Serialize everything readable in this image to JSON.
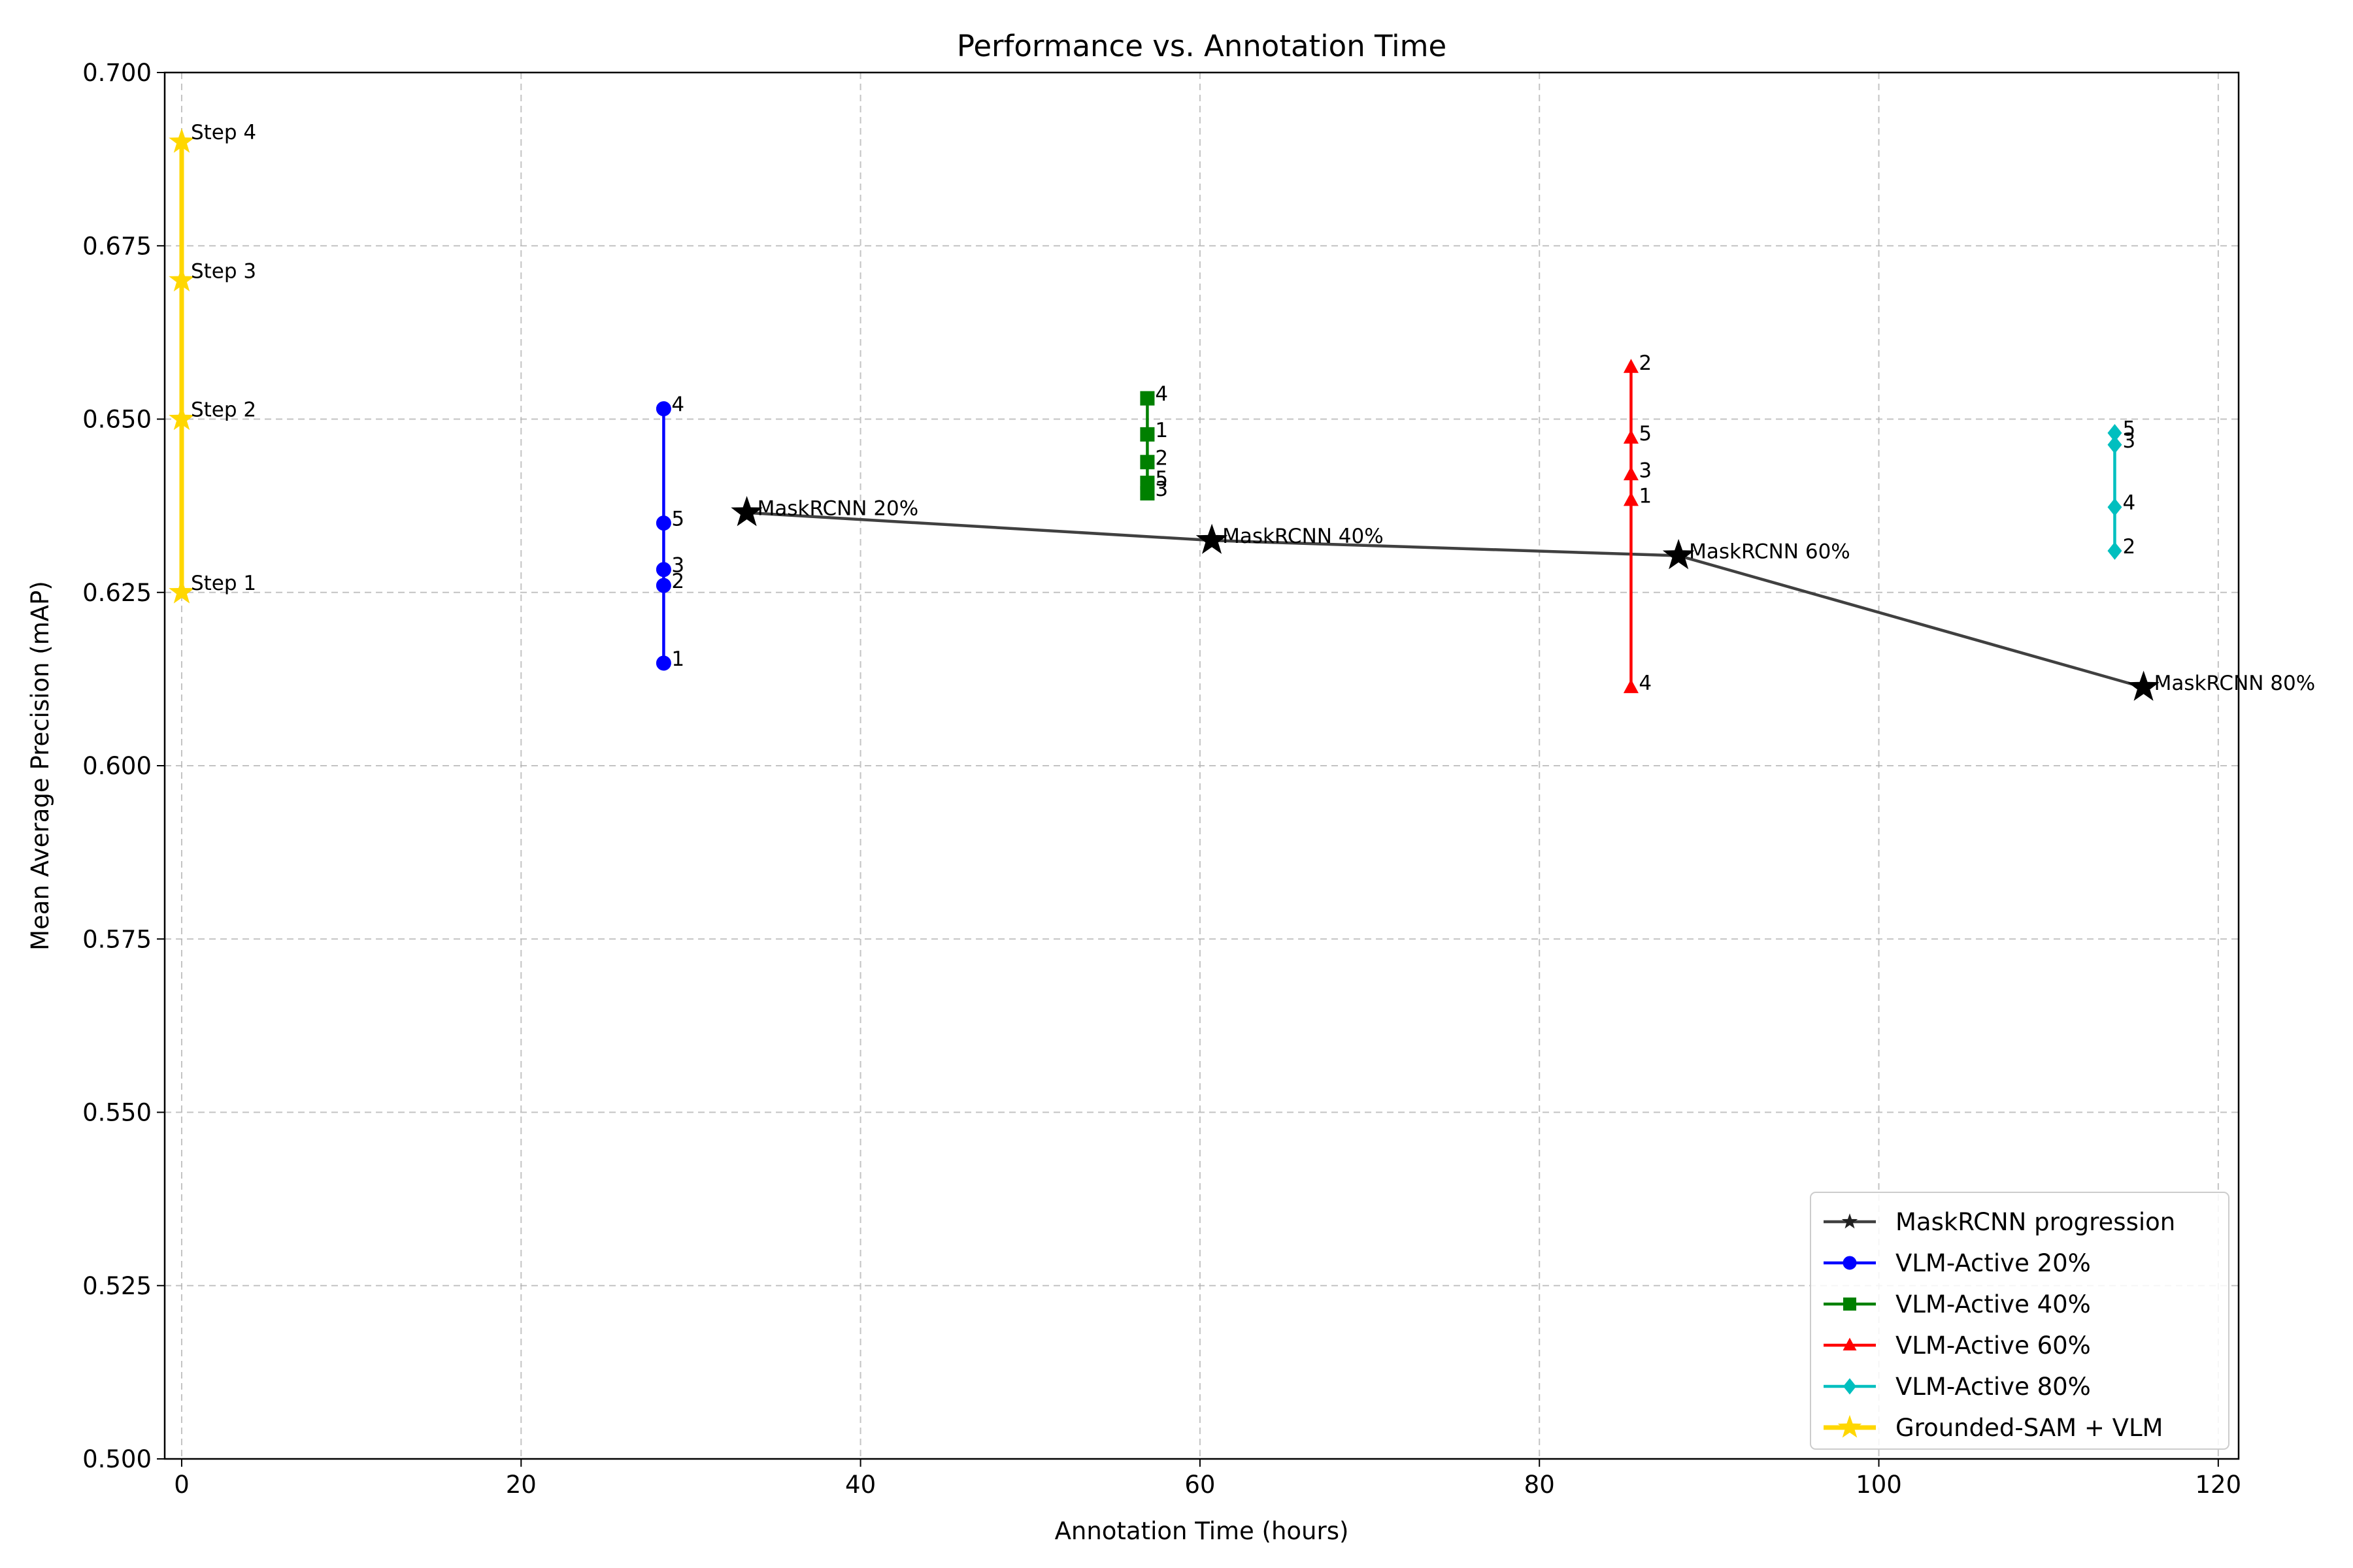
{
  "chart_data": {
    "type": "line",
    "title": "Performance vs. Annotation Time",
    "xlabel": "Annotation Time (hours)",
    "ylabel": "Mean Average Precision (mAP)",
    "xlim": [
      -1,
      121.2
    ],
    "ylim": [
      0.5,
      0.7
    ],
    "xticks": [
      0,
      20,
      40,
      60,
      80,
      100,
      120
    ],
    "yticks": [
      0.5,
      0.525,
      0.55,
      0.575,
      0.6,
      0.625,
      0.65,
      0.675,
      0.7
    ],
    "xtick_labels": [
      "0",
      "20",
      "40",
      "60",
      "80",
      "100",
      "120"
    ],
    "ytick_labels": [
      "0.500",
      "0.525",
      "0.550",
      "0.575",
      "0.600",
      "0.625",
      "0.650",
      "0.675",
      "0.700"
    ],
    "grid": true,
    "legend_position": "lower-right",
    "series": [
      {
        "name": "MaskRCNN progression",
        "color": "#404040",
        "marker": "star",
        "connect": "line",
        "points": [
          {
            "x": 33.3,
            "y": 0.6365,
            "label": "MaskRCNN 20%"
          },
          {
            "x": 60.7,
            "y": 0.6325,
            "label": "MaskRCNN 40%"
          },
          {
            "x": 88.2,
            "y": 0.6303,
            "label": "MaskRCNN 60%"
          },
          {
            "x": 115.6,
            "y": 0.6113,
            "label": "MaskRCNN 80%"
          }
        ]
      },
      {
        "name": "VLM-Active 20%",
        "color": "#0000ff",
        "marker": "circle",
        "connect": "vertical",
        "points": [
          {
            "x": 28.4,
            "y": 0.6148,
            "label": "1"
          },
          {
            "x": 28.4,
            "y": 0.626,
            "label": "2"
          },
          {
            "x": 28.4,
            "y": 0.6283,
            "label": "3"
          },
          {
            "x": 28.4,
            "y": 0.6515,
            "label": "4"
          },
          {
            "x": 28.4,
            "y": 0.635,
            "label": "5"
          }
        ]
      },
      {
        "name": "VLM-Active 40%",
        "color": "#008000",
        "marker": "square",
        "connect": "vertical",
        "points": [
          {
            "x": 56.9,
            "y": 0.6478,
            "label": "1"
          },
          {
            "x": 56.9,
            "y": 0.6438,
            "label": "2"
          },
          {
            "x": 56.9,
            "y": 0.6393,
            "label": "3"
          },
          {
            "x": 56.9,
            "y": 0.653,
            "label": "4"
          },
          {
            "x": 56.9,
            "y": 0.6408,
            "label": "5"
          }
        ]
      },
      {
        "name": "VLM-Active 60%",
        "color": "#ff0000",
        "marker": "triangle",
        "connect": "vertical",
        "points": [
          {
            "x": 85.4,
            "y": 0.6383,
            "label": "1"
          },
          {
            "x": 85.4,
            "y": 0.6575,
            "label": "2"
          },
          {
            "x": 85.4,
            "y": 0.642,
            "label": "3"
          },
          {
            "x": 85.4,
            "y": 0.6113,
            "label": "4"
          },
          {
            "x": 85.4,
            "y": 0.6473,
            "label": "5"
          }
        ]
      },
      {
        "name": "VLM-Active 80%",
        "color": "#00bfbf",
        "marker": "diamond",
        "connect": "vertical",
        "points": [
          {
            "x": 113.9,
            "y": 0.631,
            "label": "2"
          },
          {
            "x": 113.9,
            "y": 0.6463,
            "label": "3"
          },
          {
            "x": 113.9,
            "y": 0.6373,
            "label": "4"
          },
          {
            "x": 113.9,
            "y": 0.648,
            "label": "5"
          }
        ]
      },
      {
        "name": "Grounded-SAM + VLM",
        "color": "#ffd700",
        "label_color": "#b8860b",
        "marker": "star",
        "connect": "vertical",
        "points": [
          {
            "x": 0,
            "y": 0.625,
            "label": "Step 1"
          },
          {
            "x": 0,
            "y": 0.65,
            "label": "Step 2"
          },
          {
            "x": 0,
            "y": 0.67,
            "label": "Step 3"
          },
          {
            "x": 0,
            "y": 0.69,
            "label": "Step 4"
          }
        ]
      }
    ]
  }
}
